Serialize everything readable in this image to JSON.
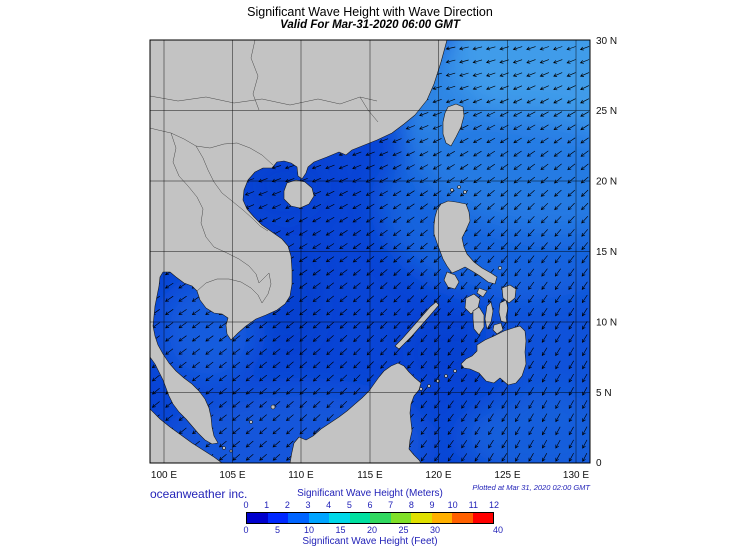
{
  "title": "Significant Wave Height with Wave Direction",
  "subtitle": "Valid For Mar-31-2020 06:00 GMT",
  "footer": {
    "credit": "oceanweather inc.",
    "plotted": "Plotted at Mar 31, 2020 02:00 GMT"
  },
  "axes": {
    "lon_ticks": [
      "100 E",
      "105 E",
      "110 E",
      "115 E",
      "120 E",
      "125 E",
      "130 E"
    ],
    "lat_ticks": [
      "30 N",
      "25 N",
      "20 N",
      "15 N",
      "10 N",
      "5 N",
      "0"
    ]
  },
  "legend": {
    "meters_label": "Significant Wave Height (Meters)",
    "feet_label": "Significant Wave Height (Feet)",
    "meters_ticks": [
      "0",
      "1",
      "2",
      "3",
      "4",
      "5",
      "6",
      "7",
      "8",
      "9",
      "10",
      "11",
      "12"
    ],
    "feet_ticks": [
      "0",
      "5",
      "10",
      "15",
      "20",
      "25",
      "30",
      "40"
    ],
    "feet_to_meter": 0.3048,
    "colors": [
      "#0000cd",
      "#0028ff",
      "#0064ff",
      "#00a4ff",
      "#00d8e8",
      "#00e0a0",
      "#30d860",
      "#80e028",
      "#e0e000",
      "#ffb000",
      "#ff6000",
      "#ff0000"
    ]
  },
  "chart_data": {
    "type": "heatmap",
    "title": "Significant Wave Height with Wave Direction",
    "valid_for": "Mar-31-2020 06:00 GMT",
    "plotted_at": "Mar 31, 2020 02:00 GMT",
    "lon_ticks_deg_e": [
      100,
      105,
      110,
      115,
      120,
      125,
      130
    ],
    "lat_ticks_deg_n": [
      0,
      5,
      10,
      15,
      20,
      25,
      30
    ],
    "colorbar_meters": [
      0,
      1,
      2,
      3,
      4,
      5,
      6,
      7,
      8,
      9,
      10,
      11,
      12
    ],
    "colorbar_feet": [
      0,
      5,
      10,
      15,
      20,
      25,
      30,
      40
    ],
    "approx_wave_height_m": {
      "south_china_sea": 1.5,
      "gulf_of_thailand": 1,
      "northeast_open_ocean": 2.5,
      "celebes_sea": 1.5
    },
    "arrows": "wave direction vectors over water, pointing generally west to southwest"
  }
}
